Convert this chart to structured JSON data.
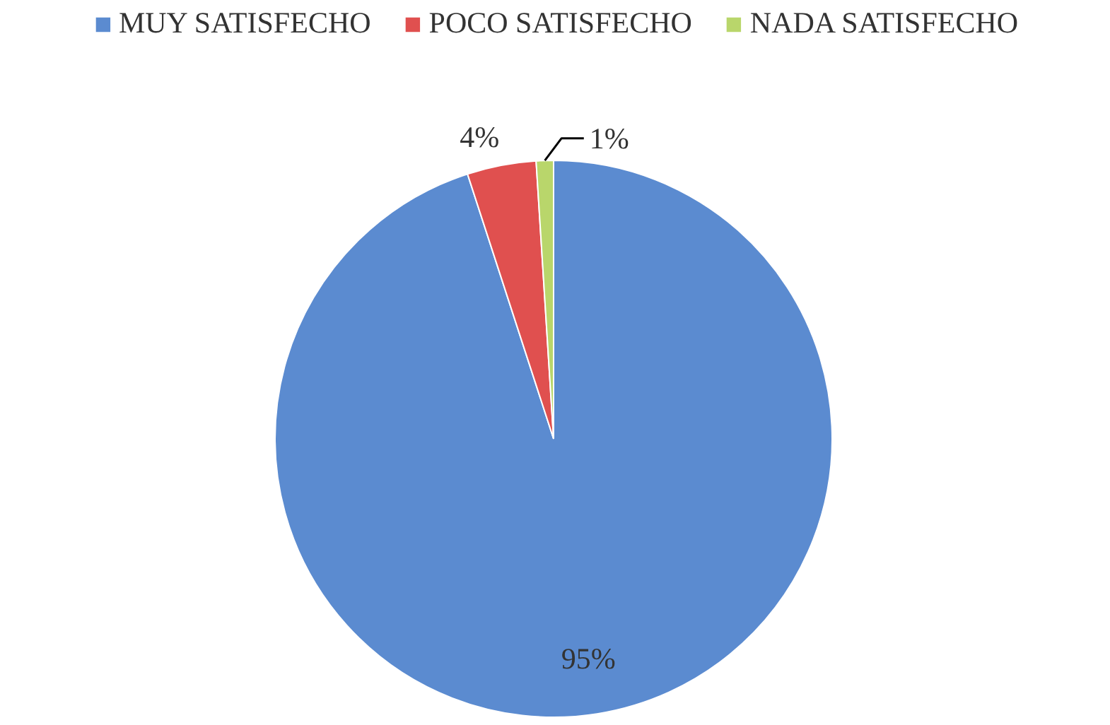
{
  "chart_data": {
    "type": "pie",
    "categories": [
      "MUY SATISFECHO",
      "POCO SATISFECHO",
      "NADA SATISFECHO"
    ],
    "values": [
      95,
      4,
      1
    ],
    "colors": [
      "#5b8bd0",
      "#e0504f",
      "#b9d66b"
    ],
    "value_labels": [
      "95%",
      "4%",
      "1%"
    ],
    "legend": "top"
  }
}
